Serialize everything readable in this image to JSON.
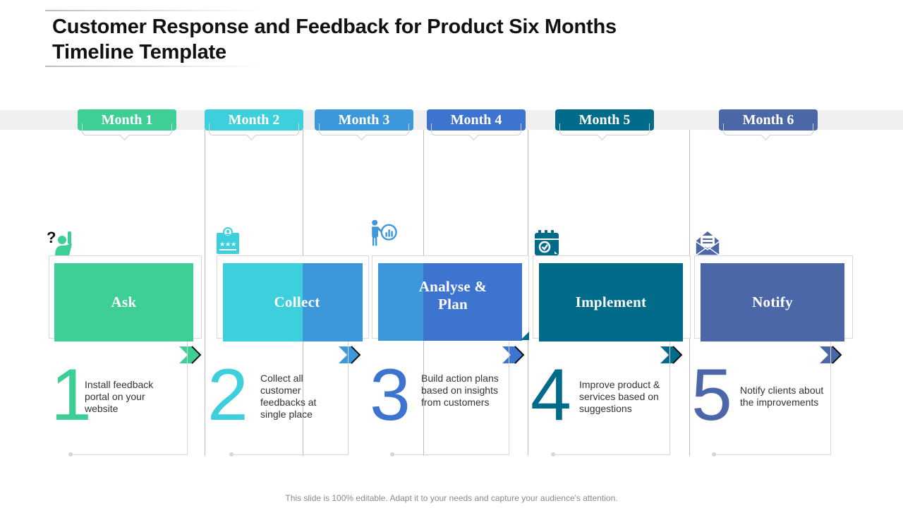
{
  "title": "Customer Response and Feedback for Product Six Months Timeline Template",
  "colors": {
    "green": "#3ecf96",
    "cyan": "#3ecfdc",
    "blue": "#3d98db",
    "royal": "#3d74cf",
    "teal": "#026b8a",
    "slate": "#4c67a8"
  },
  "months": [
    {
      "label": "Month 1"
    },
    {
      "label": "Month 2"
    },
    {
      "label": "Month 3"
    },
    {
      "label": "Month 4"
    },
    {
      "label": "Month 5"
    },
    {
      "label": "Month 6"
    }
  ],
  "stages": [
    {
      "label": "Ask",
      "number": "1",
      "description": "Install feedback portal on your website",
      "icon": "raised-hand-question-icon"
    },
    {
      "label": "Collect",
      "number": "2",
      "description": "Collect all customer feedbacks at single place",
      "icon": "rating-badge-icon"
    },
    {
      "label": "Analyse & Plan",
      "number": "3",
      "description": "Build action plans based on insights from customers",
      "icon": "presenter-chart-icon"
    },
    {
      "label": "Implement",
      "number": "4",
      "description": "Improve product & services based on suggestions",
      "icon": "calendar-check-icon"
    },
    {
      "label": "Notify",
      "number": "5",
      "description": "Notify clients about the improvements",
      "icon": "envelope-icon"
    }
  ],
  "footer": "This slide is 100% editable. Adapt it to your needs and capture your audience's attention."
}
